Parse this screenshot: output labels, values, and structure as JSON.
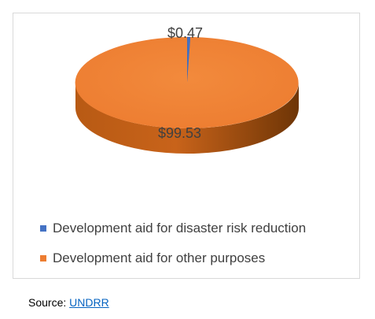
{
  "chart_data": {
    "type": "pie",
    "style": "3d",
    "title": "",
    "slices": [
      {
        "label": "Development aid for disaster risk reduction",
        "value": 0.47,
        "data_label": "$0.47",
        "color": "#4472c4"
      },
      {
        "label": "Development aid for other purposes",
        "value": 99.53,
        "data_label": "$99.53",
        "color": "#ed7d31"
      }
    ],
    "legend_position": "bottom-left"
  },
  "source": {
    "prefix": "Source: ",
    "link_text": "UNDRR"
  }
}
